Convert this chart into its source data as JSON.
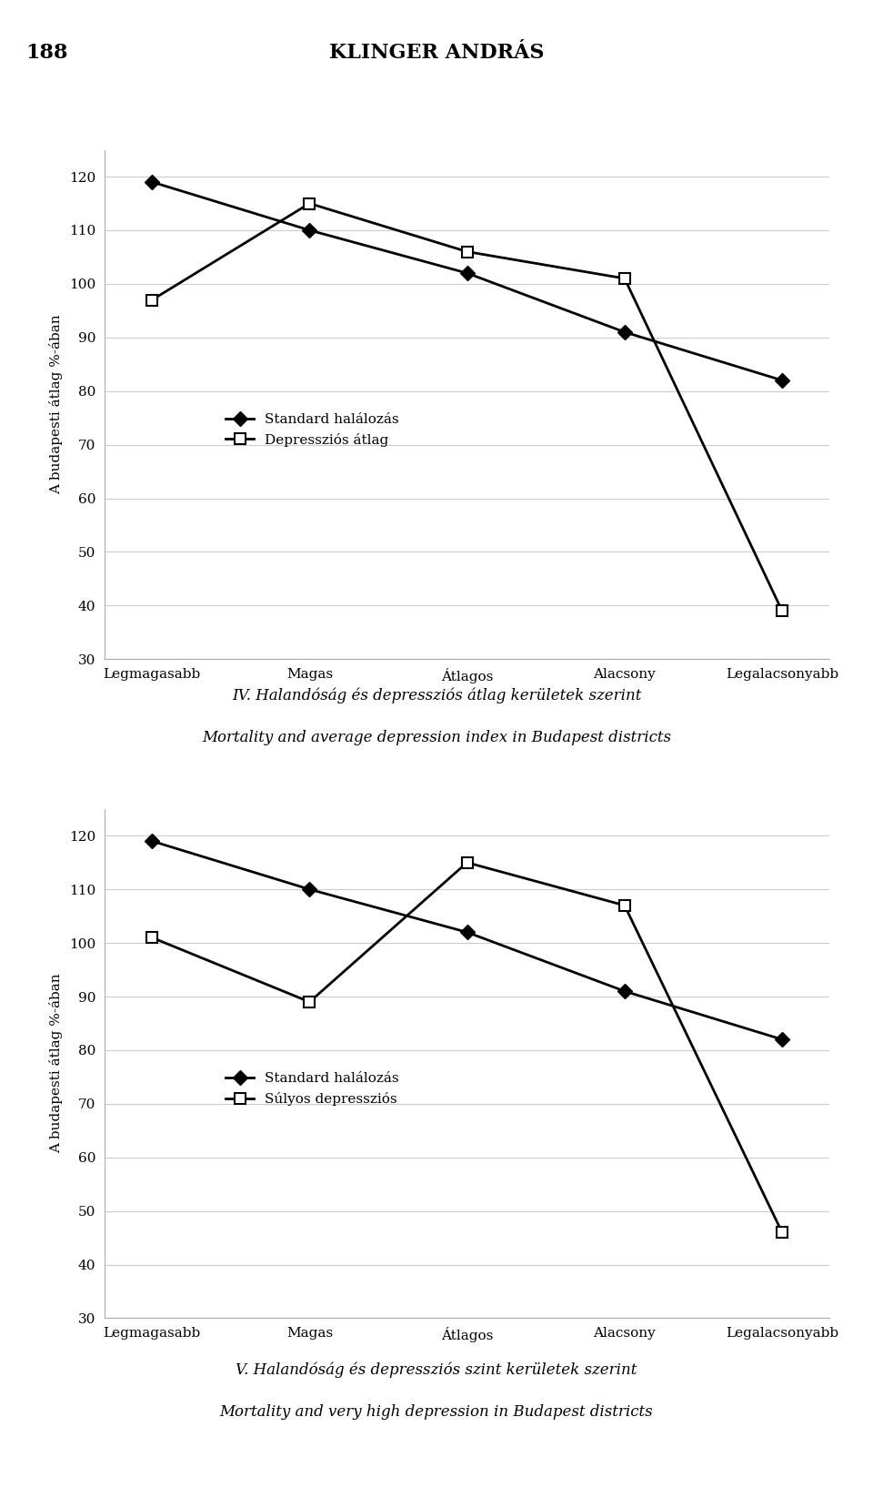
{
  "page_number": "188",
  "page_title": "KLINGER ANDRÁS",
  "categories": [
    "Legmagasabb",
    "Magas",
    "Átlagos",
    "Alacsony",
    "Legalacsonyabb"
  ],
  "chart1": {
    "standard_halalozas": [
      119,
      110,
      102,
      91,
      82
    ],
    "depresszios_atlag": [
      97,
      115,
      106,
      101,
      39
    ],
    "legend1": "Standard halálozás",
    "legend2": "Depressziós átlag",
    "ylim": [
      30,
      125
    ],
    "yticks": [
      30,
      40,
      50,
      60,
      70,
      80,
      90,
      100,
      110,
      120
    ],
    "caption_line1": "IV. Halandóság és depressziós átlag kerületek szerint",
    "caption_line2": "Mortality and average depression index in Budapest districts"
  },
  "chart2": {
    "standard_halalozas": [
      119,
      110,
      102,
      91,
      82
    ],
    "sullyos_depresszios": [
      101,
      89,
      115,
      107,
      46
    ],
    "legend1": "Standard halálozás",
    "legend2": "Súlyos depressziós",
    "ylim": [
      30,
      125
    ],
    "yticks": [
      30,
      40,
      50,
      60,
      70,
      80,
      90,
      100,
      110,
      120
    ],
    "caption_line1": "V. Halandóság és depressziós szint kerületek szerint",
    "caption_line2": "Mortality and very high depression in Budapest districts"
  },
  "ylabel": "A budapesti átlag %-ában",
  "bg_color": "#ffffff",
  "line_color": "#000000",
  "marker_diamond": "D",
  "marker_square": "s"
}
